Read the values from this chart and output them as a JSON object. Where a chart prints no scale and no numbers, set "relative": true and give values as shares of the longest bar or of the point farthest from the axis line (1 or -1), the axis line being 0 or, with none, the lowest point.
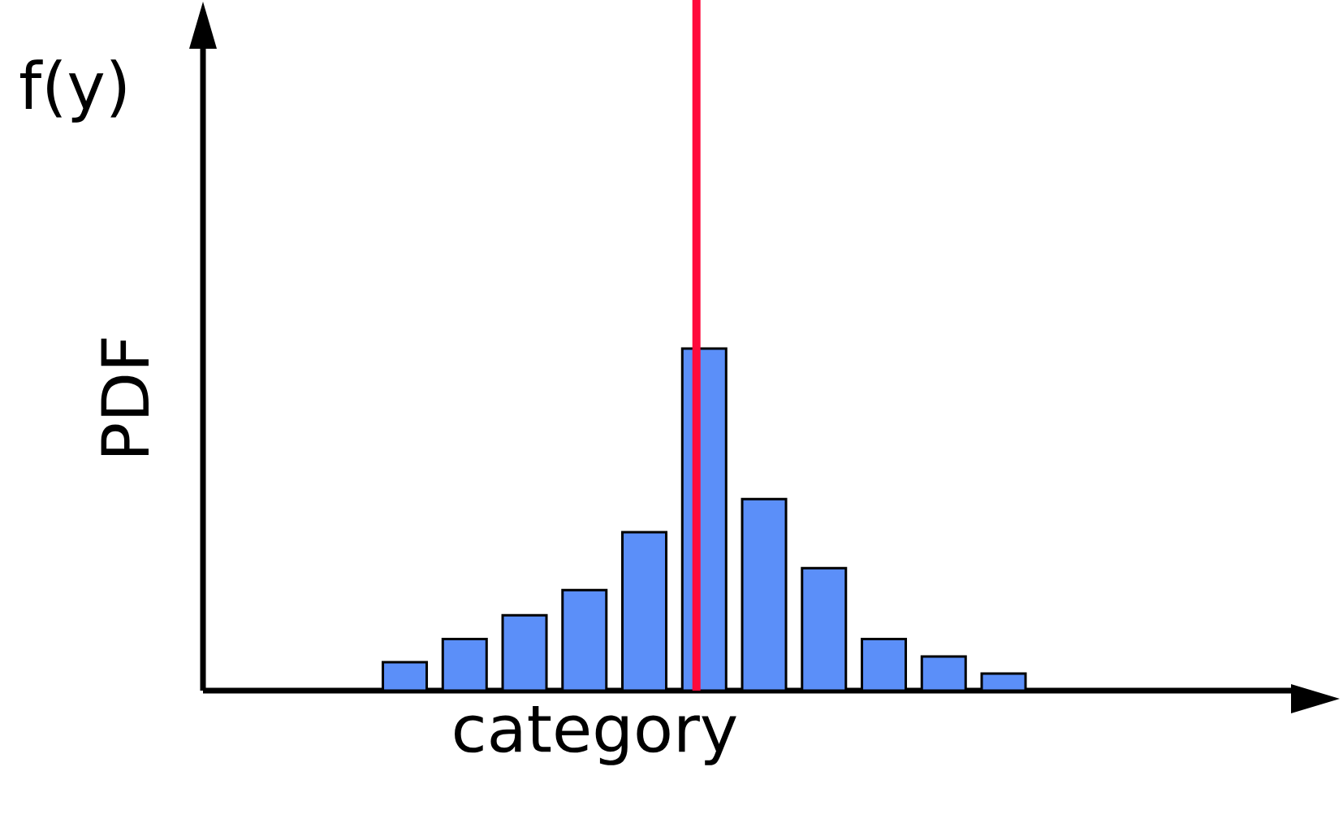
{
  "chart_data": {
    "type": "bar",
    "relative": true,
    "xlabel": "category",
    "ylabel": "PDF",
    "annotations": [
      "f(y)"
    ],
    "categories": [
      null,
      null,
      null,
      null,
      null,
      null,
      null,
      null,
      null,
      null,
      null
    ],
    "values": [
      0.083,
      0.151,
      0.22,
      0.294,
      0.463,
      1,
      0.56,
      0.358,
      0.151,
      0.1,
      0.05
    ],
    "color": "#5b8ff9"
  }
}
